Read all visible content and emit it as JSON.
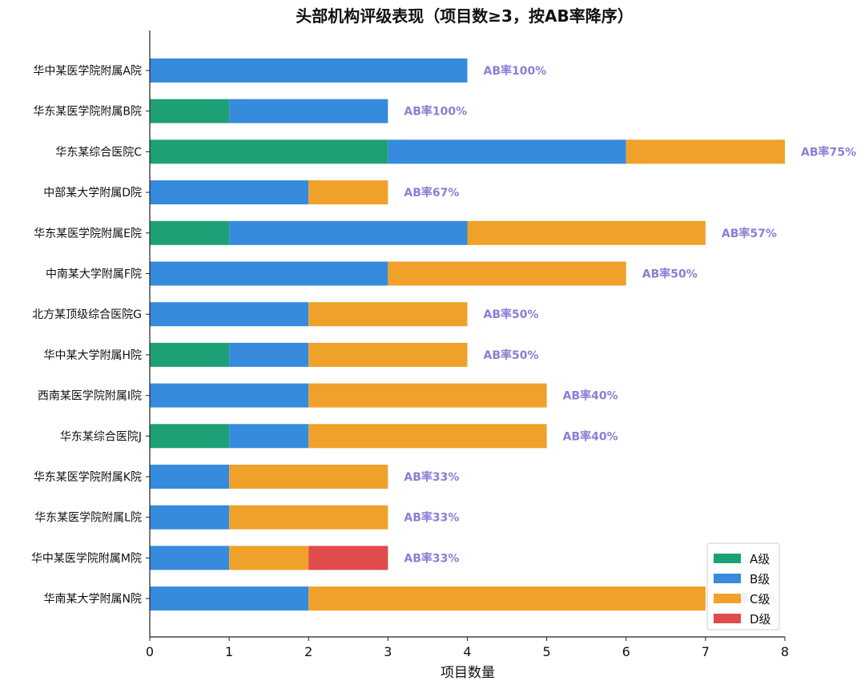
{
  "chart_data": {
    "type": "bar",
    "orientation": "horizontal",
    "stacked": true,
    "title": "头部机构评级表现（项目数≥3，按AB率降序）",
    "xlabel": "项目数量",
    "ylabel": "",
    "xlim": [
      0,
      8
    ],
    "xticks": [
      "0",
      "1",
      "2",
      "3",
      "4",
      "5",
      "6",
      "7",
      "8"
    ],
    "grid": false,
    "legend_position": "bottom-right",
    "categories": [
      "华中某医学院附属A院",
      "华东某医学院附属B院",
      "华东某综合医院C",
      "中部某大学附属D院",
      "华东某医学院附属E院",
      "中南某大学附属F院",
      "北方某顶级综合医院G",
      "华中某大学附属H院",
      "西南某医学院附属I院",
      "华东某综合医院J",
      "华东某医学院附属K院",
      "华东某医学院附属L院",
      "华中某医学院附属M院",
      "华南某大学附属N院"
    ],
    "series": [
      {
        "name": "A级",
        "color": "#1ea077",
        "values": [
          0,
          1,
          3,
          0,
          1,
          0,
          0,
          1,
          0,
          1,
          0,
          0,
          0,
          0
        ]
      },
      {
        "name": "B级",
        "color": "#368bdc",
        "values": [
          4,
          2,
          3,
          2,
          3,
          3,
          2,
          1,
          2,
          1,
          1,
          1,
          1,
          2
        ]
      },
      {
        "name": "C级",
        "color": "#efa12a",
        "values": [
          0,
          0,
          2,
          1,
          3,
          3,
          2,
          2,
          3,
          3,
          2,
          2,
          1,
          5
        ]
      },
      {
        "name": "D级",
        "color": "#e04b4b",
        "values": [
          0,
          0,
          0,
          0,
          0,
          0,
          0,
          0,
          0,
          0,
          0,
          0,
          1,
          0
        ]
      }
    ],
    "annotations": [
      "AB率100%",
      "AB率100%",
      "AB率75%",
      "AB率67%",
      "AB率57%",
      "AB率50%",
      "AB率50%",
      "AB率50%",
      "AB率40%",
      "AB率40%",
      "AB率33%",
      "AB率33%",
      "AB率33%",
      "AB率29%"
    ],
    "annotation_color": "#8a7fd6"
  }
}
